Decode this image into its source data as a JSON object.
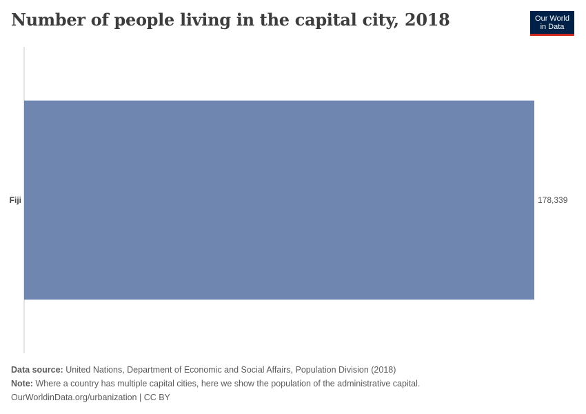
{
  "title": "Number of people living in the capital city, 2018",
  "logo": {
    "line1": "Our World",
    "line2": "in Data"
  },
  "colors": {
    "bar": "#6f87b0",
    "axis": "#c8c8c8",
    "logo_bg": "#002147",
    "logo_accent": "#ce261e"
  },
  "chart_data": {
    "type": "bar",
    "orientation": "horizontal",
    "categories": [
      "Fiji"
    ],
    "values": [
      178339
    ],
    "value_labels": [
      "178,339"
    ],
    "xlim": [
      0,
      178339
    ],
    "grid": false
  },
  "footer": {
    "source_label": "Data source:",
    "source_text": "United Nations, Department of Economic and Social Affairs, Population Division (2018)",
    "note_label": "Note:",
    "note_text": "Where a country has multiple capital cities, here we show the population of the administrative capital.",
    "url_text": "OurWorldinData.org/urbanization | CC BY"
  }
}
